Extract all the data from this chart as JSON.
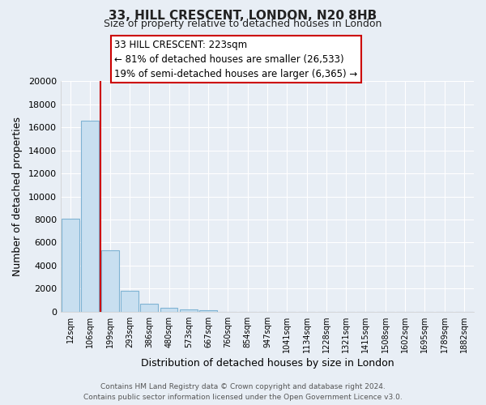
{
  "title": "33, HILL CRESCENT, LONDON, N20 8HB",
  "subtitle": "Size of property relative to detached houses in London",
  "xlabel": "Distribution of detached houses by size in London",
  "ylabel": "Number of detached properties",
  "bar_labels": [
    "12sqm",
    "106sqm",
    "199sqm",
    "293sqm",
    "386sqm",
    "480sqm",
    "573sqm",
    "667sqm",
    "760sqm",
    "854sqm",
    "947sqm",
    "1041sqm",
    "1134sqm",
    "1228sqm",
    "1321sqm",
    "1415sqm",
    "1508sqm",
    "1602sqm",
    "1695sqm",
    "1789sqm",
    "1882sqm"
  ],
  "bar_values": [
    8100,
    16600,
    5300,
    1800,
    700,
    350,
    200,
    150,
    0,
    0,
    0,
    0,
    0,
    0,
    0,
    0,
    0,
    0,
    0,
    0,
    0
  ],
  "bar_color": "#c8dff0",
  "bar_edge_color": "#7fb3d3",
  "ylim": [
    0,
    20000
  ],
  "yticks": [
    0,
    2000,
    4000,
    6000,
    8000,
    10000,
    12000,
    14000,
    16000,
    18000,
    20000
  ],
  "property_line_color": "#cc0000",
  "annotation_title": "33 HILL CRESCENT: 223sqm",
  "annotation_line1": "← 81% of detached houses are smaller (26,533)",
  "annotation_line2": "19% of semi-detached houses are larger (6,365) →",
  "annotation_box_edge": "#cc0000",
  "footer_line1": "Contains HM Land Registry data © Crown copyright and database right 2024.",
  "footer_line2": "Contains public sector information licensed under the Open Government Licence v3.0.",
  "background_color": "#e8eef5",
  "plot_bg_color": "#e8eef5",
  "grid_color": "#ffffff",
  "title_fontsize": 11,
  "subtitle_fontsize": 9,
  "ylabel_fontsize": 9,
  "xlabel_fontsize": 9,
  "tick_fontsize": 8,
  "annotation_fontsize": 8.5,
  "footer_fontsize": 6.5
}
